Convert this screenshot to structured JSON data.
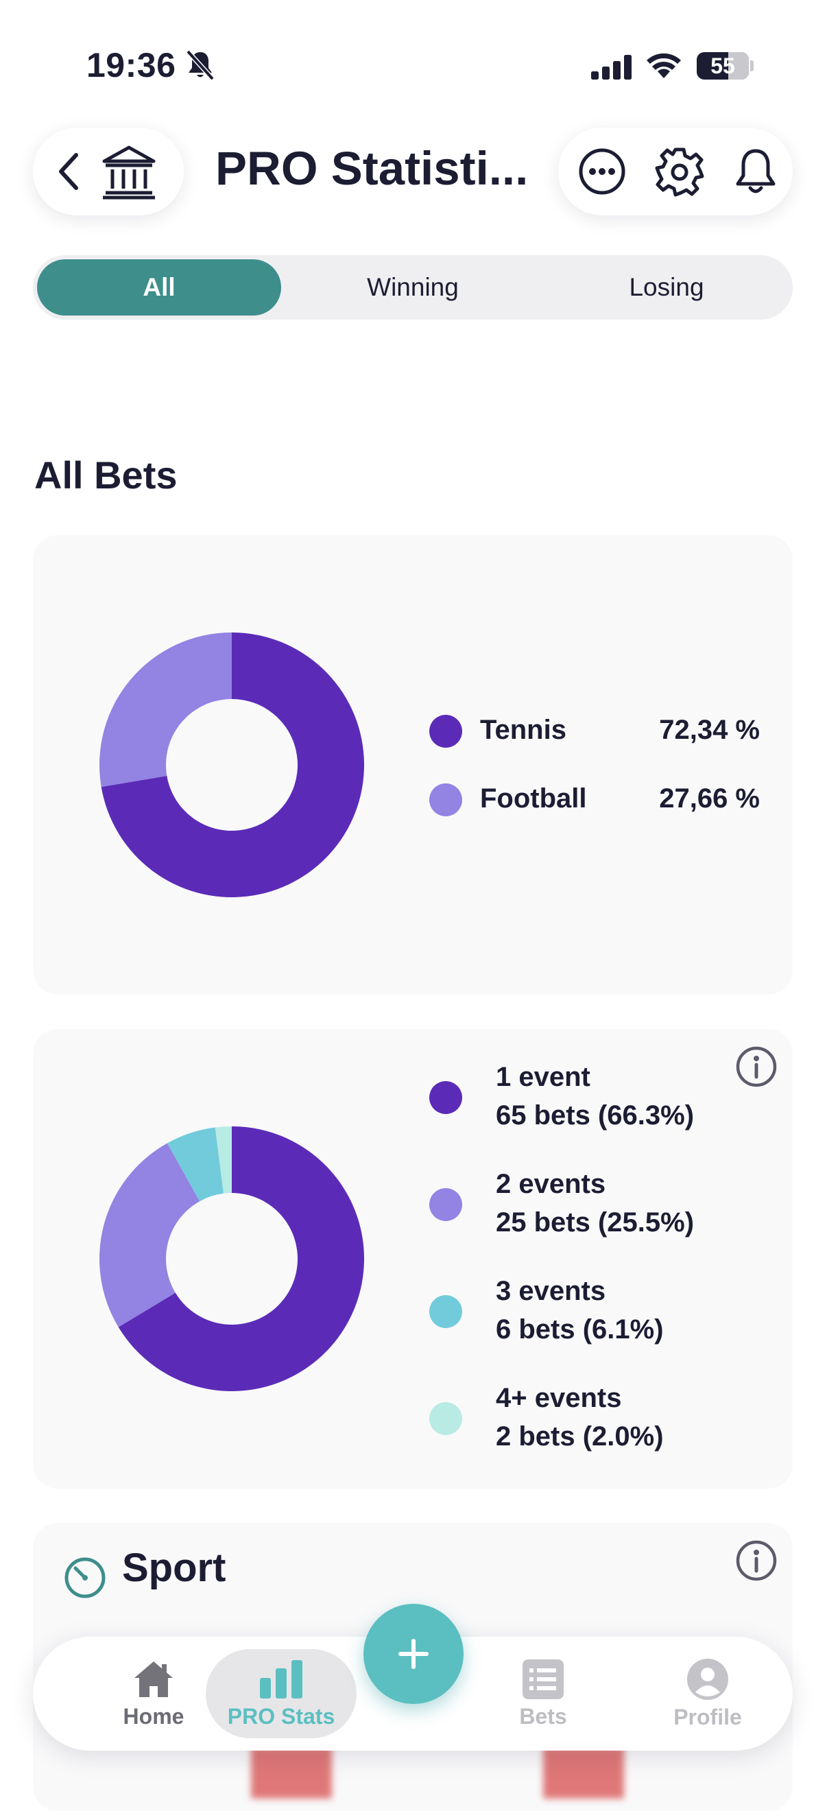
{
  "status_bar": {
    "time": "19:36",
    "battery_level": "55"
  },
  "header": {
    "title": "PRO Statisti..."
  },
  "segments": {
    "all": "All",
    "winning": "Winning",
    "losing": "Losing"
  },
  "section": {
    "title": "All Bets"
  },
  "sport_split": {
    "items": [
      {
        "label": "Tennis",
        "percent": "72,34 %",
        "value": 72.34,
        "color": "#5b2bb8"
      },
      {
        "label": "Football",
        "percent": "27,66 %",
        "value": 27.66,
        "color": "#9383e3"
      }
    ]
  },
  "event_split": {
    "items": [
      {
        "title": "1 event",
        "detail": "65 bets (66.3%)",
        "value": 66.3,
        "color": "#5b2bb8"
      },
      {
        "title": "2 events",
        "detail": "25 bets (25.5%)",
        "value": 25.5,
        "color": "#9383e3"
      },
      {
        "title": "3 events",
        "detail": "6 bets (6.1%)",
        "value": 6.1,
        "color": "#72cbdb"
      },
      {
        "title": "4+ events",
        "detail": "2 bets (2.0%)",
        "value": 2.0,
        "color": "#b8ebe4"
      }
    ]
  },
  "sport_card": {
    "title": "Sport"
  },
  "nav": {
    "home": "Home",
    "pro_stats": "PRO Stats",
    "bets": "Bets",
    "profile": "Profile"
  },
  "colors": {
    "accent": "#3e8e8c",
    "teal": "#5bbfc1",
    "purple": "#5b2bb8",
    "lavender": "#9383e3"
  }
}
